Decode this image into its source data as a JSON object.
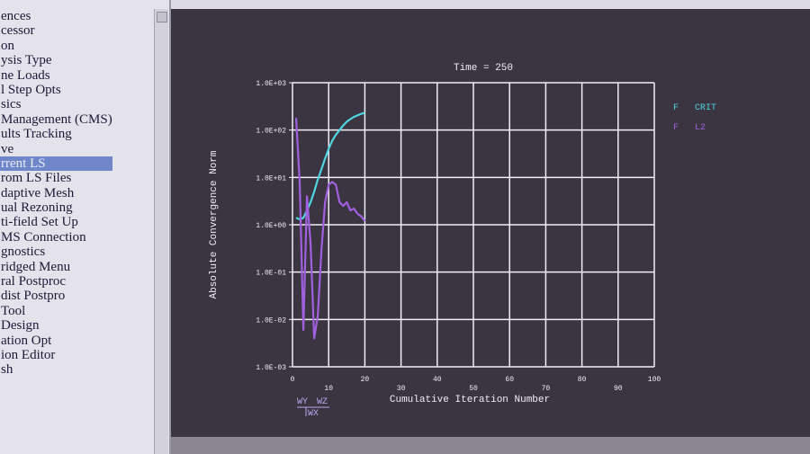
{
  "menu": {
    "items": [
      "ences",
      "cessor",
      "on",
      "ysis Type",
      "ne Loads",
      "l Step Opts",
      "sics",
      "Management (CMS)",
      "ults Tracking",
      "ve",
      "rrent LS",
      "rom LS Files",
      "daptive Mesh",
      "ual Rezoning",
      "ti-field Set Up",
      "MS Connection",
      "gnostics",
      "ridged Menu",
      "ral Postproc",
      "dist Postpro",
      "Tool",
      "Design",
      "ation Opt",
      "ion Editor",
      "sh"
    ],
    "selected_index": 10
  },
  "chart_data": {
    "type": "line",
    "title": "Time = 250",
    "x_label": "Cumulative Iteration Number",
    "y_label": "Absolute Convergence Norm",
    "log_y": true,
    "grid": true,
    "x": [
      1,
      2,
      3,
      4,
      5,
      6,
      7,
      8,
      9,
      10,
      11,
      12,
      13,
      14,
      15,
      16,
      17,
      18,
      19,
      20
    ],
    "series": [
      {
        "name": "F   CRIT",
        "color": "#4fd6e0",
        "values": [
          1.4,
          1.3,
          1.4,
          2,
          3,
          5,
          9,
          15,
          25,
          40,
          60,
          80,
          100,
          125,
          150,
          170,
          190,
          205,
          220,
          230
        ]
      },
      {
        "name": "F   L2",
        "color": "#a060e0",
        "values": [
          180,
          8,
          0.006,
          4,
          0.4,
          0.004,
          0.012,
          0.3,
          3,
          7,
          8,
          7,
          3,
          2.5,
          3,
          2,
          2.2,
          1.7,
          1.5,
          1.2
        ]
      }
    ],
    "xlim": [
      0,
      100
    ],
    "xticks": [
      0,
      10,
      20,
      30,
      40,
      50,
      60,
      70,
      80,
      90,
      100
    ],
    "ylim": [
      0.001,
      1000
    ],
    "yticks": [
      {
        "value": 0.001,
        "label": "1.0E-03"
      },
      {
        "value": 0.01,
        "label": "1.0E-02"
      },
      {
        "value": 0.1,
        "label": "1.0E-01"
      },
      {
        "value": 1,
        "label": "1.0E+00"
      },
      {
        "value": 10,
        "label": "1.0E+01"
      },
      {
        "value": 100,
        "label": "1.0E+02"
      },
      {
        "value": 1000,
        "label": "1.0E+03"
      }
    ]
  },
  "triad": {
    "labels": [
      "WY",
      "WZ",
      "WX"
    ]
  }
}
